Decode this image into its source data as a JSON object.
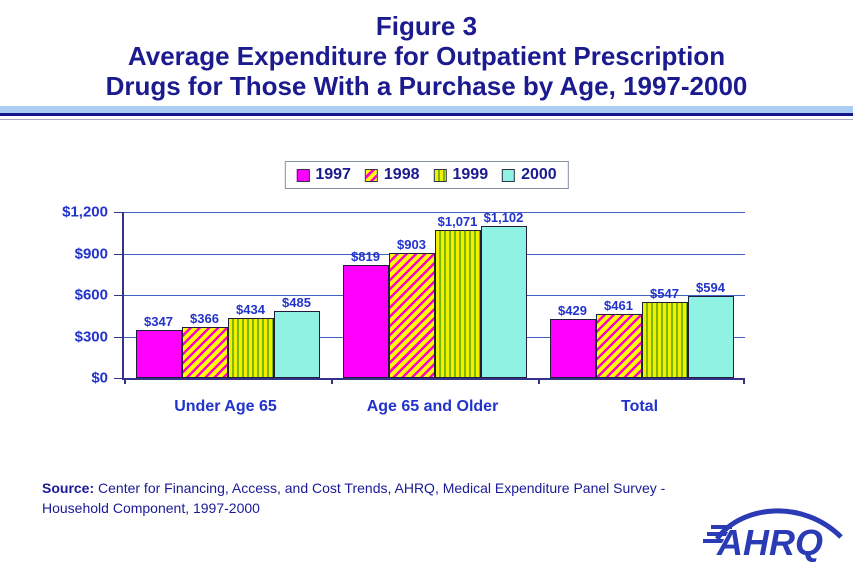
{
  "title": {
    "line1": "Figure 3",
    "line2": "Average Expenditure for Outpatient Prescription",
    "line3": "Drugs for Those With a Purchase by Age, 1997-2000"
  },
  "chart_data": {
    "type": "bar",
    "title": "Average Expenditure for Outpatient Prescription Drugs for Those With a Purchase by Age, 1997-2000",
    "categories": [
      "Under Age 65",
      "Age 65 and Older",
      "Total"
    ],
    "series": [
      {
        "name": "1997",
        "values": [
          347,
          819,
          429
        ]
      },
      {
        "name": "1998",
        "values": [
          366,
          903,
          461
        ]
      },
      {
        "name": "1999",
        "values": [
          434,
          1071,
          547
        ]
      },
      {
        "name": "2000",
        "values": [
          485,
          1102,
          594
        ]
      }
    ],
    "data_labels": [
      [
        "$347",
        "$366",
        "$434",
        "$485"
      ],
      [
        "$819",
        "$903",
        "$1,071",
        "$1,102"
      ],
      [
        "$429",
        "$461",
        "$547",
        "$594"
      ]
    ],
    "xlabel": "",
    "ylabel": "",
    "ylim": [
      0,
      1200
    ],
    "ytick_step": 300,
    "yticks": [
      "$0",
      "$300",
      "$600",
      "$900",
      "$1,200"
    ],
    "grid": true,
    "legend_position": "top-center",
    "series_colors": {
      "1997": "#FF00FF",
      "1998": "#FFFF00 with #FF00CC diagonal stripes",
      "1999": "#F0F000 with #7DB700 vertical stripes",
      "2000": "#8FF2E2"
    },
    "accent_colors": {
      "title_navy": "#1B1B8F",
      "label_blue": "#2233CC",
      "gridline_blue": "#4161C2",
      "axis_navy": "#333388",
      "divider_light_blue": "#A9CDF3"
    }
  },
  "source": {
    "bold": "Source:",
    "line1": " Center for Financing, Access, and Cost Trends, AHRQ, Medical Expenditure Panel Survey -",
    "line2": "Household Component, 1997-2000"
  },
  "logo": {
    "text": "AHRQ"
  }
}
